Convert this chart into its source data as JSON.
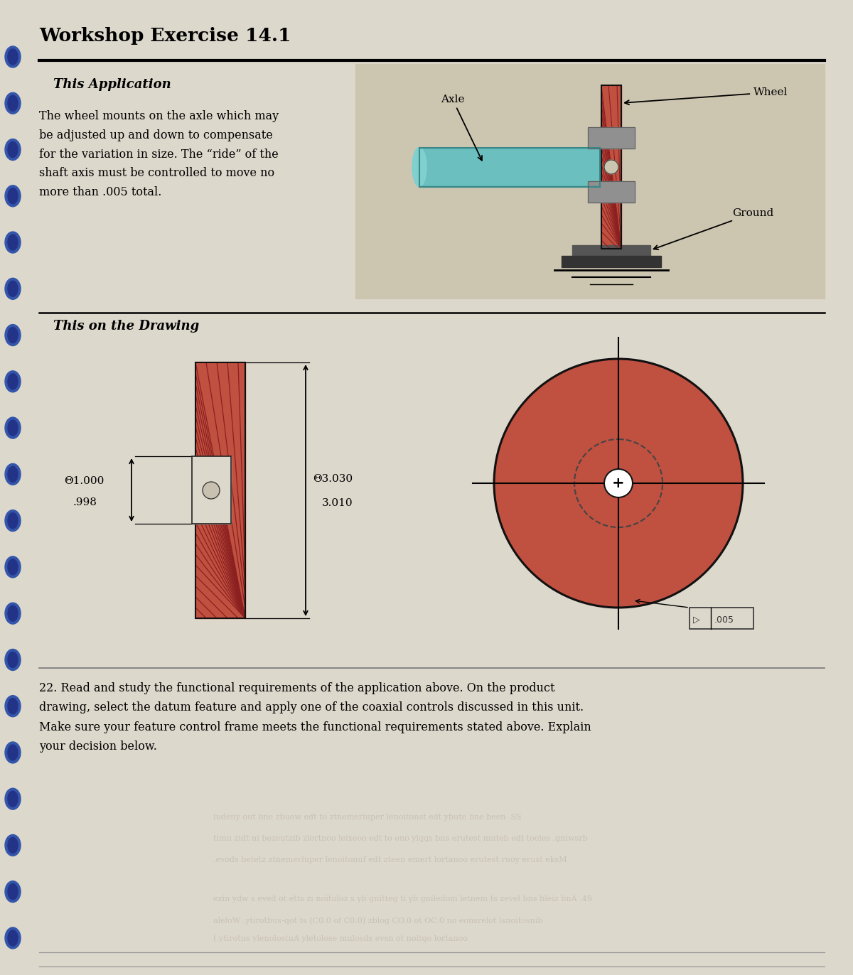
{
  "title": "Workshop Exercise 14.1",
  "page_bg": "#ddd8cc",
  "section1_title": "This Application",
  "section1_text": "The wheel mounts on the axle which may\nbe adjusted up and down to compensate\nfor the variation in size. The “ride” of the\nshaft axis must be controlled to move no\nmore than .005 total.",
  "section2_title": "This on the Drawing",
  "dim_outer_top": "3.030",
  "dim_outer_bot": "3.010",
  "dim_bore_top": "1.000",
  "dim_bore_bot": ".998",
  "wheel_color": "#c05040",
  "wheel_hatch_color": "#8b2020",
  "axle_color": "#6bbfbf",
  "axle_dark": "#3a8888",
  "hardware_color": "#909090",
  "hardware_dark": "#606060",
  "label_axle": "Axle",
  "label_wheel": "Wheel",
  "label_ground": "Ground",
  "question_text": "22. Read and study the functional requirements of the application above. On the product\ndrawing, select the datum feature and apply one of the coaxial controls discussed in this unit.\nMake sure your feature control frame meets the functional requirements stated above. Explain\nyour decision below.",
  "ghost_lines": [
    "iudeny out bne zbuow edt to ztnemerluper lenoitonst edt ybute bne been .SS",
    "timu zidt ni bezeutzib zlortnoo leixeoo edt to eno ylqqs bns erutest muteb edt toeles .gniwsrb",
    ".evods betetz ztnemerluper lenoitonuf edt zteen emert lortanoo erutest ruoy erust eksM",
    "ezin ydw s eved ot etts zi noituloz s yb gnitteg ti yb gniledom letnem ts zevel bns bleiz bnA .4S",
    "aleloW .ytirotbus-qot ts (C0.0 of C0.0) zblog CO.0 ot OC.0 no eonsrelot lsnoitosnib",
    "(.ytirotus ylenolostuA yletolose mulosds evsn ot noitqo lortanoo"
  ],
  "binding_color": "#3355aa",
  "binding_inner": "#223388",
  "ill_bg": "#ccc5b0"
}
